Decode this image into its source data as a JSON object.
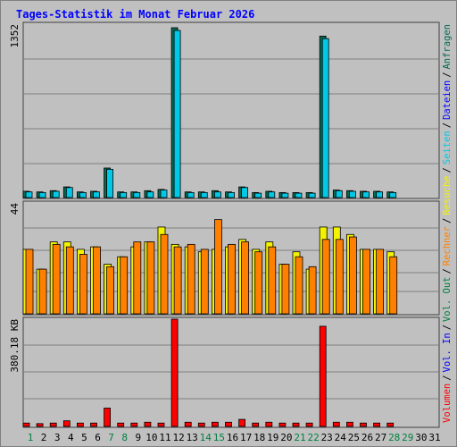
{
  "title": "Tages-Statistik im Monat Februar 2026",
  "colors": {
    "background": "#c0c0c0",
    "grid": "#808080",
    "anfragen": "#066b53",
    "dateien": "#0000ff",
    "seiten": "#00c8e6",
    "besuche": "#f3f300",
    "rechner": "#ff8000",
    "volumen": "#ff0000",
    "weekday": "#000000",
    "weekend": "#008040"
  },
  "chart_data": [
    {
      "type": "bar",
      "name": "hits-files-pages",
      "ymax_label": "1352",
      "ylim": [
        0,
        1352
      ],
      "categories": [
        "1",
        "2",
        "3",
        "4",
        "5",
        "6",
        "7",
        "8",
        "9",
        "10",
        "11",
        "12",
        "13",
        "14",
        "15",
        "16",
        "17",
        "18",
        "19",
        "20",
        "21",
        "22",
        "23",
        "24",
        "25",
        "26",
        "27",
        "28",
        "29",
        "30",
        "31"
      ],
      "legend": [
        "Anfragen",
        "Dateien",
        "Seiten"
      ],
      "series": [
        {
          "name": "Anfragen",
          "values": [
            50,
            45,
            55,
            85,
            45,
            50,
            235,
            45,
            45,
            55,
            65,
            1352,
            45,
            45,
            55,
            45,
            85,
            40,
            50,
            40,
            40,
            40,
            1285,
            60,
            55,
            50,
            50,
            45,
            null,
            null,
            null
          ]
        },
        {
          "name": "Seiten",
          "values": [
            45,
            40,
            50,
            80,
            40,
            45,
            225,
            40,
            40,
            45,
            60,
            1330,
            40,
            40,
            45,
            40,
            80,
            35,
            45,
            35,
            35,
            35,
            1265,
            55,
            50,
            45,
            45,
            40,
            null,
            null,
            null
          ]
        }
      ]
    },
    {
      "type": "bar",
      "name": "visits-sites",
      "ymax_label": "44",
      "ylim": [
        0,
        44
      ],
      "legend": [
        "Besuche",
        "Rechner"
      ],
      "series": [
        {
          "name": "Besuche",
          "values": [
            26,
            18,
            29,
            29,
            26,
            27,
            20,
            23,
            27,
            29,
            35,
            28,
            27,
            25,
            26,
            27,
            30,
            26,
            29,
            20,
            25,
            18,
            35,
            35,
            32,
            26,
            26,
            25,
            null,
            null,
            null
          ]
        },
        {
          "name": "Rechner",
          "values": [
            26,
            18,
            28,
            27,
            24,
            27,
            19,
            23,
            29,
            29,
            32,
            27,
            28,
            26,
            38,
            28,
            29,
            25,
            27,
            20,
            23,
            19,
            30,
            30,
            31,
            26,
            26,
            23,
            null,
            null,
            null
          ]
        }
      ]
    },
    {
      "type": "bar",
      "name": "volume",
      "ymax_label": "380.18 KB",
      "ylim": [
        0,
        380.18
      ],
      "legend": [
        "Volumen",
        "Vol. In",
        "Vol. Out"
      ],
      "series": [
        {
          "name": "Volumen",
          "values": [
            12,
            10,
            12,
            20,
            12,
            12,
            65,
            12,
            12,
            15,
            12,
            380.18,
            15,
            12,
            15,
            15,
            25,
            12,
            15,
            12,
            12,
            12,
            355,
            15,
            15,
            12,
            12,
            12,
            null,
            null,
            null
          ]
        }
      ]
    }
  ],
  "x_axis": {
    "days": [
      "1",
      "2",
      "3",
      "4",
      "5",
      "6",
      "7",
      "8",
      "9",
      "10",
      "11",
      "12",
      "13",
      "14",
      "15",
      "16",
      "17",
      "18",
      "19",
      "20",
      "21",
      "22",
      "23",
      "24",
      "25",
      "26",
      "27",
      "28",
      "29",
      "30",
      "31"
    ],
    "weekend_days": [
      "1",
      "7",
      "8",
      "14",
      "15",
      "21",
      "22",
      "28",
      "29"
    ]
  },
  "legend_right": [
    {
      "label": "Anfragen",
      "color": "#066b53"
    },
    {
      "label": "Dateien",
      "color": "#0000ff"
    },
    {
      "label": "Seiten",
      "color": "#00c8e6"
    },
    {
      "label": "Besuche",
      "color": "#f3f300"
    },
    {
      "label": "Rechner",
      "color": "#ff8000"
    },
    {
      "label": "Vol. Out",
      "color": "#008040"
    },
    {
      "label": "Vol. In",
      "color": "#0000ff"
    },
    {
      "label": "Volumen",
      "color": "#ff0000"
    }
  ],
  "legend_separator": "/"
}
